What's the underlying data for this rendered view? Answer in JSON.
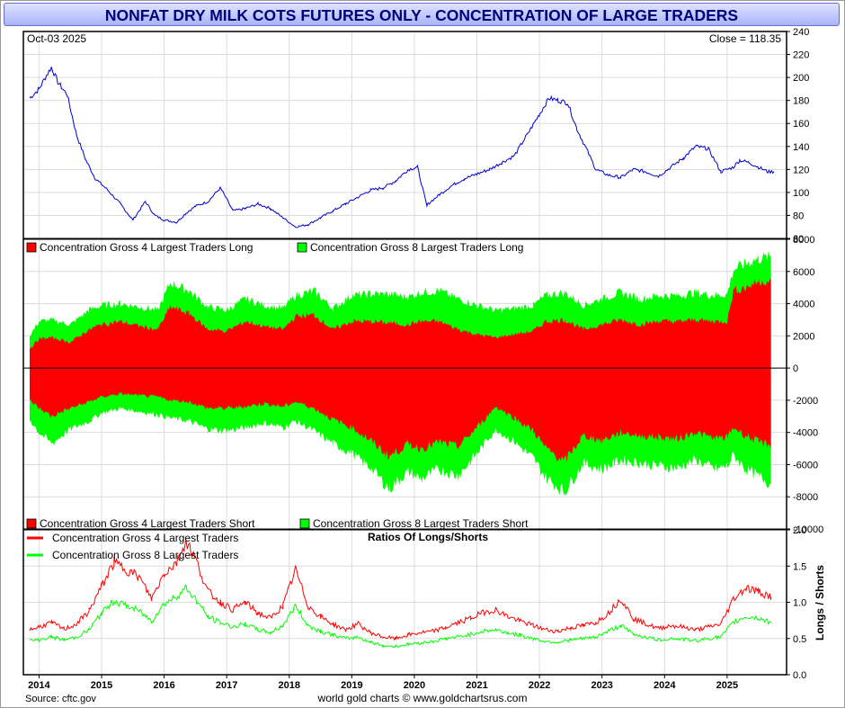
{
  "header": {
    "title": "NONFAT DRY MILK COTS FUTURES ONLY - CONCENTRATION OF LARGE TRADERS",
    "date_label": "Oct-03  2025",
    "close_label": "Close = 118.35"
  },
  "footer": {
    "source": "Source: cftc.gov",
    "credit": "world gold charts © www.goldchartsrus.com"
  },
  "colors": {
    "price_line": "#0000cc",
    "four_largest": "#ff0000",
    "eight_largest": "#00ff00",
    "axis": "#000000",
    "grid": "#dcdcdc",
    "title_text": "#00007a"
  },
  "chart_data": [
    {
      "type": "line",
      "panel": "price",
      "x_years": [
        "2014",
        "2015",
        "2016",
        "2017",
        "2018",
        "2019",
        "2020",
        "2021",
        "2022",
        "2023",
        "2024",
        "2025"
      ],
      "x": [
        2013.85,
        2014.0,
        2014.1,
        2014.2,
        2014.3,
        2014.45,
        2014.6,
        2014.75,
        2014.9,
        2015.1,
        2015.3,
        2015.5,
        2015.7,
        2015.85,
        2016.0,
        2016.2,
        2016.35,
        2016.5,
        2016.7,
        2016.9,
        2017.1,
        2017.3,
        2017.5,
        2017.7,
        2017.9,
        2018.1,
        2018.3,
        2018.5,
        2018.7,
        2018.9,
        2019.1,
        2019.3,
        2019.5,
        2019.7,
        2019.9,
        2020.05,
        2020.2,
        2020.22,
        2020.4,
        2020.6,
        2020.8,
        2021.0,
        2021.2,
        2021.4,
        2021.6,
        2021.8,
        2022.0,
        2022.15,
        2022.3,
        2022.45,
        2022.6,
        2022.75,
        2022.9,
        2023.1,
        2023.3,
        2023.5,
        2023.7,
        2023.9,
        2024.1,
        2024.3,
        2024.5,
        2024.7,
        2024.9,
        2025.1,
        2025.2,
        2025.35,
        2025.5,
        2025.65,
        2025.75
      ],
      "y": [
        182,
        190,
        200,
        209,
        196,
        185,
        150,
        128,
        112,
        102,
        90,
        76,
        92,
        80,
        76,
        74,
        82,
        88,
        92,
        104,
        84,
        86,
        90,
        86,
        78,
        70,
        72,
        78,
        84,
        90,
        96,
        102,
        104,
        110,
        120,
        122,
        88,
        90,
        98,
        106,
        112,
        116,
        120,
        126,
        132,
        150,
        168,
        182,
        180,
        178,
        155,
        138,
        120,
        115,
        113,
        120,
        118,
        114,
        122,
        130,
        140,
        138,
        118,
        122,
        128,
        126,
        122,
        118,
        118
      ],
      "ylim": [
        60,
        240
      ],
      "yticks": [
        60,
        80,
        100,
        120,
        140,
        160,
        180,
        200,
        220,
        240
      ]
    },
    {
      "type": "area",
      "panel": "positions",
      "series": [
        {
          "name": "Concentration Gross 4 Largest Traders Long",
          "x": [
            2013.85,
            2014.0,
            2014.2,
            2014.5,
            2014.8,
            2015.0,
            2015.3,
            2015.6,
            2015.9,
            2016.1,
            2016.4,
            2016.7,
            2017.0,
            2017.3,
            2017.6,
            2017.9,
            2018.1,
            2018.4,
            2018.7,
            2019.0,
            2019.3,
            2019.6,
            2019.9,
            2020.1,
            2020.4,
            2020.7,
            2021.0,
            2021.3,
            2021.6,
            2021.9,
            2022.1,
            2022.4,
            2022.7,
            2023.0,
            2023.3,
            2023.6,
            2023.9,
            2024.2,
            2024.5,
            2024.8,
            2025.0,
            2025.1,
            2025.3,
            2025.5,
            2025.7
          ],
          "values": [
            1200,
            1800,
            1900,
            1600,
            2400,
            2700,
            2900,
            2600,
            2400,
            3800,
            3400,
            2400,
            2300,
            2900,
            2600,
            2400,
            3200,
            3300,
            2400,
            2900,
            2900,
            2800,
            2700,
            2900,
            2900,
            2400,
            2100,
            1900,
            2100,
            2300,
            2900,
            3000,
            2400,
            2700,
            3000,
            2700,
            2900,
            2900,
            3000,
            2900,
            2900,
            4800,
            5000,
            5400,
            5400
          ]
        },
        {
          "name": "Concentration Gross 8 Largest Traders Long",
          "x": [
            2013.85,
            2014.0,
            2014.2,
            2014.5,
            2014.8,
            2015.0,
            2015.3,
            2015.6,
            2015.9,
            2016.1,
            2016.4,
            2016.7,
            2017.0,
            2017.3,
            2017.6,
            2017.9,
            2018.1,
            2018.4,
            2018.7,
            2019.0,
            2019.3,
            2019.6,
            2019.9,
            2020.1,
            2020.4,
            2020.7,
            2021.0,
            2021.3,
            2021.6,
            2021.9,
            2022.1,
            2022.4,
            2022.7,
            2023.0,
            2023.3,
            2023.6,
            2023.9,
            2024.2,
            2024.5,
            2024.8,
            2025.0,
            2025.1,
            2025.3,
            2025.5,
            2025.7
          ],
          "values": [
            2000,
            2900,
            3000,
            2700,
            3600,
            3900,
            4000,
            3800,
            3600,
            5300,
            4800,
            3800,
            3600,
            4300,
            3900,
            3700,
            4500,
            4800,
            3700,
            4500,
            4600,
            4600,
            4400,
            4700,
            4800,
            4300,
            3900,
            3600,
            3700,
            3900,
            4500,
            4700,
            3900,
            4300,
            4700,
            4300,
            4500,
            4500,
            4700,
            4500,
            4600,
            6100,
            6500,
            6800,
            6900
          ]
        },
        {
          "name": "Concentration Gross 4 Largest Traders Short",
          "x": [
            2013.85,
            2014.0,
            2014.2,
            2014.5,
            2014.8,
            2015.0,
            2015.3,
            2015.6,
            2015.9,
            2016.1,
            2016.4,
            2016.7,
            2017.0,
            2017.3,
            2017.6,
            2017.9,
            2018.1,
            2018.4,
            2018.7,
            2019.0,
            2019.3,
            2019.6,
            2019.9,
            2020.1,
            2020.4,
            2020.7,
            2021.0,
            2021.3,
            2021.6,
            2021.9,
            2022.1,
            2022.4,
            2022.7,
            2023.0,
            2023.3,
            2023.6,
            2023.9,
            2024.2,
            2024.5,
            2024.8,
            2025.0,
            2025.1,
            2025.3,
            2025.5,
            2025.7
          ],
          "values": [
            -2000,
            -2500,
            -3000,
            -2500,
            -2100,
            -1800,
            -1600,
            -1700,
            -1800,
            -2000,
            -2100,
            -2500,
            -2500,
            -2400,
            -2200,
            -2400,
            -2100,
            -2500,
            -3200,
            -3700,
            -4500,
            -5500,
            -4700,
            -5000,
            -4600,
            -4900,
            -3700,
            -2400,
            -3100,
            -3900,
            -5000,
            -5800,
            -4200,
            -4500,
            -4000,
            -4200,
            -4300,
            -4400,
            -4000,
            -4400,
            -4300,
            -3700,
            -4200,
            -4600,
            -4800
          ]
        },
        {
          "name": "Concentration Gross 8 Largest Traders Short",
          "x": [
            2013.85,
            2014.0,
            2014.2,
            2014.5,
            2014.8,
            2015.0,
            2015.3,
            2015.6,
            2015.9,
            2016.1,
            2016.4,
            2016.7,
            2017.0,
            2017.3,
            2017.6,
            2017.9,
            2018.1,
            2018.4,
            2018.7,
            2019.0,
            2019.3,
            2019.6,
            2019.9,
            2020.1,
            2020.4,
            2020.7,
            2021.0,
            2021.3,
            2021.6,
            2021.9,
            2022.1,
            2022.4,
            2022.7,
            2023.0,
            2023.3,
            2023.6,
            2023.9,
            2024.2,
            2024.5,
            2024.8,
            2025.0,
            2025.1,
            2025.3,
            2025.5,
            2025.7
          ],
          "values": [
            -3200,
            -4000,
            -4700,
            -3800,
            -3300,
            -2800,
            -2500,
            -2700,
            -2900,
            -3100,
            -3300,
            -3800,
            -3900,
            -3700,
            -3400,
            -3700,
            -3300,
            -3900,
            -4700,
            -5300,
            -6200,
            -7500,
            -6400,
            -6900,
            -6300,
            -6700,
            -5300,
            -3800,
            -4600,
            -5600,
            -6800,
            -7700,
            -5900,
            -6300,
            -5700,
            -5900,
            -6100,
            -6200,
            -5700,
            -6300,
            -6100,
            -5400,
            -6300,
            -6700,
            -7200
          ]
        }
      ],
      "ylim": [
        -10000,
        8000
      ],
      "yticks": [
        -10000,
        -8000,
        -6000,
        -4000,
        -2000,
        0,
        2000,
        4000,
        6000,
        8000
      ]
    },
    {
      "type": "line",
      "panel": "ratios",
      "title": "Ratios Of Longs/Shorts",
      "ylabel": "Longs / Shorts",
      "series": [
        {
          "name": "Concentration Gross 4 Largest Traders",
          "x": [
            2013.85,
            2014.0,
            2014.2,
            2014.4,
            2014.6,
            2014.8,
            2015.0,
            2015.2,
            2015.4,
            2015.6,
            2015.8,
            2016.0,
            2016.2,
            2016.35,
            2016.5,
            2016.7,
            2016.9,
            2017.1,
            2017.3,
            2017.5,
            2017.7,
            2017.9,
            2018.1,
            2018.3,
            2018.5,
            2018.7,
            2018.9,
            2019.1,
            2019.3,
            2019.5,
            2019.7,
            2019.9,
            2020.1,
            2020.3,
            2020.5,
            2020.7,
            2020.9,
            2021.1,
            2021.3,
            2021.5,
            2021.7,
            2021.9,
            2022.1,
            2022.3,
            2022.5,
            2022.7,
            2022.9,
            2023.1,
            2023.3,
            2023.5,
            2023.7,
            2023.9,
            2024.1,
            2024.3,
            2024.5,
            2024.7,
            2024.9,
            2025.1,
            2025.3,
            2025.5,
            2025.7
          ],
          "values": [
            0.62,
            0.66,
            0.72,
            0.63,
            0.7,
            0.88,
            1.22,
            1.55,
            1.45,
            1.35,
            1.05,
            1.4,
            1.55,
            1.85,
            1.6,
            1.15,
            1.0,
            0.9,
            1.0,
            0.85,
            0.78,
            0.95,
            1.45,
            0.95,
            0.8,
            0.7,
            0.62,
            0.7,
            0.58,
            0.52,
            0.5,
            0.55,
            0.58,
            0.6,
            0.65,
            0.72,
            0.78,
            0.86,
            0.9,
            0.8,
            0.74,
            0.68,
            0.62,
            0.6,
            0.65,
            0.68,
            0.72,
            0.85,
            1.05,
            0.78,
            0.7,
            0.64,
            0.68,
            0.66,
            0.62,
            0.66,
            0.7,
            1.05,
            1.2,
            1.15,
            1.08
          ]
        },
        {
          "name": "Concentration Gross 8 Largest Traders",
          "x": [
            2013.85,
            2014.0,
            2014.2,
            2014.4,
            2014.6,
            2014.8,
            2015.0,
            2015.2,
            2015.4,
            2015.6,
            2015.8,
            2016.0,
            2016.2,
            2016.35,
            2016.5,
            2016.7,
            2016.9,
            2017.1,
            2017.3,
            2017.5,
            2017.7,
            2017.9,
            2018.1,
            2018.3,
            2018.5,
            2018.7,
            2018.9,
            2019.1,
            2019.3,
            2019.5,
            2019.7,
            2019.9,
            2020.1,
            2020.3,
            2020.5,
            2020.7,
            2020.9,
            2021.1,
            2021.3,
            2021.5,
            2021.7,
            2021.9,
            2022.1,
            2022.3,
            2022.5,
            2022.7,
            2022.9,
            2023.1,
            2023.3,
            2023.5,
            2023.7,
            2023.9,
            2024.1,
            2024.3,
            2024.5,
            2024.7,
            2024.9,
            2025.1,
            2025.3,
            2025.5,
            2025.7
          ],
          "values": [
            0.47,
            0.48,
            0.52,
            0.48,
            0.52,
            0.62,
            0.85,
            1.02,
            0.95,
            0.88,
            0.74,
            0.98,
            1.08,
            1.2,
            1.05,
            0.8,
            0.72,
            0.66,
            0.7,
            0.62,
            0.58,
            0.68,
            0.95,
            0.68,
            0.6,
            0.55,
            0.5,
            0.52,
            0.45,
            0.4,
            0.39,
            0.42,
            0.44,
            0.46,
            0.5,
            0.52,
            0.56,
            0.6,
            0.62,
            0.58,
            0.54,
            0.5,
            0.46,
            0.45,
            0.48,
            0.5,
            0.52,
            0.6,
            0.68,
            0.56,
            0.52,
            0.48,
            0.5,
            0.49,
            0.47,
            0.5,
            0.52,
            0.72,
            0.8,
            0.78,
            0.72
          ]
        }
      ],
      "ylim": [
        0.0,
        2.0
      ],
      "yticks": [
        "0.0",
        "0.5",
        "1.0",
        "1.5",
        "2.0"
      ]
    }
  ]
}
